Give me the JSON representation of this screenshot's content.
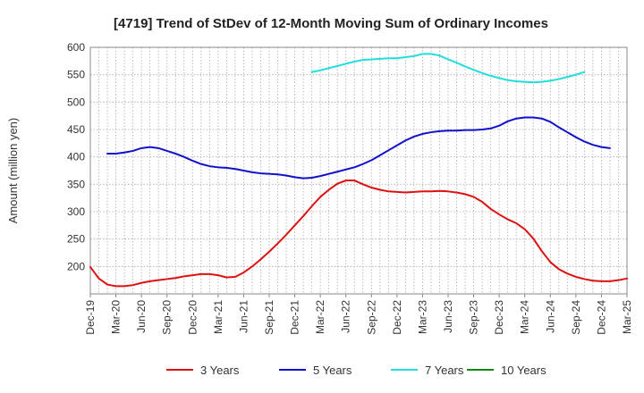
{
  "chart_data": {
    "type": "line",
    "title": "[4719]  Trend of StDev of 12-Month Moving Sum of Ordinary Incomes",
    "ylabel": "Amount (million yen)",
    "xlabel": "",
    "ylim": [
      150,
      600
    ],
    "yticks": [
      200,
      250,
      300,
      350,
      400,
      450,
      500,
      550,
      600
    ],
    "grid": true,
    "legend_position": "bottom",
    "x_tick_labels": [
      "Dec-19",
      "Mar-20",
      "Jun-20",
      "Sep-20",
      "Dec-20",
      "Mar-21",
      "Jun-21",
      "Sep-21",
      "Dec-21",
      "Mar-22",
      "Jun-22",
      "Sep-22",
      "Dec-22",
      "Mar-23",
      "Jun-23",
      "Sep-23",
      "Dec-23",
      "Mar-24",
      "Jun-24",
      "Sep-24",
      "Dec-24",
      "Mar-25"
    ],
    "x_months": [
      "2019-12",
      "2020-01",
      "2020-02",
      "2020-03",
      "2020-04",
      "2020-05",
      "2020-06",
      "2020-07",
      "2020-08",
      "2020-09",
      "2020-10",
      "2020-11",
      "2020-12",
      "2021-01",
      "2021-02",
      "2021-03",
      "2021-04",
      "2021-05",
      "2021-06",
      "2021-07",
      "2021-08",
      "2021-09",
      "2021-10",
      "2021-11",
      "2021-12",
      "2022-01",
      "2022-02",
      "2022-03",
      "2022-04",
      "2022-05",
      "2022-06",
      "2022-07",
      "2022-08",
      "2022-09",
      "2022-10",
      "2022-11",
      "2022-12",
      "2023-01",
      "2023-02",
      "2023-03",
      "2023-04",
      "2023-05",
      "2023-06",
      "2023-07",
      "2023-08",
      "2023-09",
      "2023-10",
      "2023-11",
      "2023-12",
      "2024-01",
      "2024-02",
      "2024-03",
      "2024-04",
      "2024-05",
      "2024-06",
      "2024-07",
      "2024-08",
      "2024-09",
      "2024-10",
      "2024-11",
      "2024-12",
      "2025-01",
      "2025-02",
      "2025-03"
    ],
    "series": [
      {
        "name": "3 Years",
        "color": "#dd1111",
        "start": "2019-12",
        "values": [
          199,
          178,
          167,
          164,
          164,
          166,
          170,
          173,
          175,
          177,
          179,
          182,
          184,
          186,
          186,
          184,
          180,
          181,
          189,
          200,
          213,
          227,
          242,
          258,
          275,
          292,
          310,
          327,
          340,
          351,
          357,
          357,
          350,
          344,
          340,
          337,
          336,
          335,
          336,
          337,
          337,
          338,
          337,
          335,
          332,
          327,
          318,
          305,
          295,
          286,
          279,
          268,
          251,
          228,
          208,
          195,
          187,
          181,
          177,
          174,
          173,
          173,
          175,
          178
        ]
      },
      {
        "name": "5 Years",
        "color": "#1111cc",
        "start": "2020-02",
        "values": [
          406,
          406,
          408,
          411,
          416,
          418,
          416,
          411,
          406,
          400,
          393,
          387,
          383,
          381,
          380,
          378,
          375,
          372,
          370,
          369,
          368,
          366,
          363,
          361,
          362,
          365,
          369,
          373,
          377,
          381,
          387,
          394,
          403,
          412,
          421,
          430,
          437,
          442,
          445,
          447,
          448,
          448,
          449,
          449,
          450,
          452,
          457,
          465,
          470,
          472,
          472,
          470,
          464,
          454,
          445,
          436,
          428,
          422,
          418,
          416
        ]
      },
      {
        "name": "7 Years",
        "color": "#22dddd",
        "start": "2022-02",
        "values": [
          555,
          558,
          562,
          566,
          570,
          574,
          577,
          578,
          579,
          580,
          580,
          582,
          584,
          588,
          588,
          585,
          578,
          572,
          565,
          559,
          553,
          548,
          544,
          540,
          538,
          537,
          536,
          537,
          539,
          542,
          546,
          550,
          555
        ]
      },
      {
        "name": "10 Years",
        "color": "#118811",
        "start": "2022-02",
        "values": []
      }
    ]
  }
}
